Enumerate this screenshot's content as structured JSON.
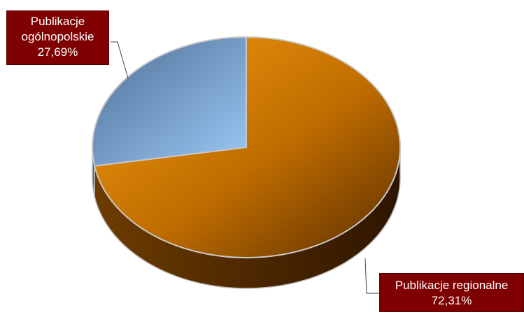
{
  "chart_data": {
    "type": "pie",
    "style": "3d",
    "categories": [
      "Publikacje regionalne",
      "Publikacje ogólnopolskie"
    ],
    "values": [
      72.31,
      27.69
    ],
    "value_labels": [
      "72,31%",
      "27,69%"
    ],
    "colors": [
      "#e68a00",
      "#7fa8d8"
    ],
    "legend": "none"
  },
  "labels": {
    "regional": {
      "line1": "Publikacje regionalne",
      "line2": "72,31%"
    },
    "national": {
      "line1": "Publikacje",
      "line2": "ogólnopolskie",
      "line3": "27,69%"
    }
  }
}
